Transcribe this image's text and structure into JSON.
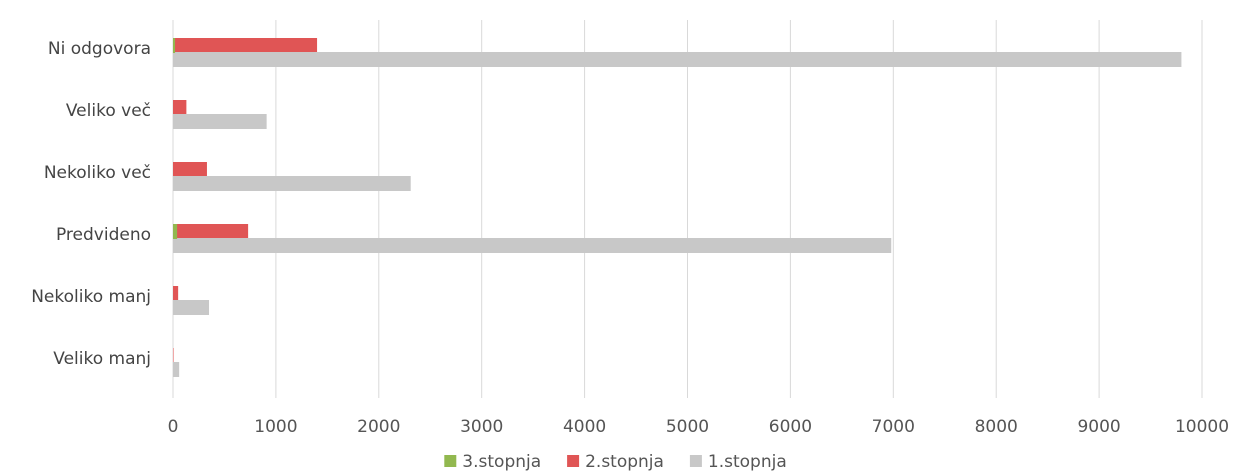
{
  "chart_data": {
    "type": "bar",
    "orientation": "horizontal",
    "categories": [
      "Ni odgovora",
      "Veliko več",
      "Nekoliko več",
      "Predvideno",
      "Nekoliko manj",
      "Veliko manj"
    ],
    "series": [
      {
        "name": "3.stopnja",
        "color": "#92b84f",
        "values": [
          20,
          0,
          0,
          40,
          0,
          0
        ]
      },
      {
        "name": "2.stopnja",
        "color": "#e05555",
        "values": [
          1400,
          130,
          330,
          730,
          50,
          5
        ]
      },
      {
        "name": "1.stopnja",
        "color": "#c8c8c8",
        "values": [
          9800,
          910,
          2310,
          6980,
          350,
          60
        ]
      }
    ],
    "xlim": [
      0,
      10000
    ],
    "x_ticks": [
      "0",
      "1000",
      "2000",
      "3000",
      "4000",
      "5000",
      "6000",
      "7000",
      "8000",
      "9000",
      "10000"
    ],
    "title": "",
    "xlabel": "",
    "ylabel": "",
    "grid": true,
    "legend_position": "bottom"
  }
}
